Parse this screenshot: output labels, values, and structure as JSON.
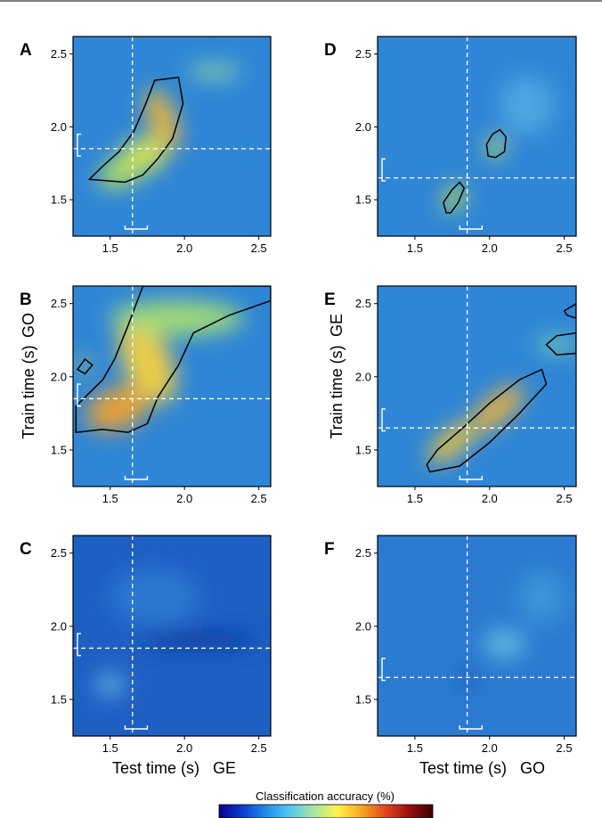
{
  "chart_data": [
    {
      "type": "heatmap",
      "panel": "A",
      "xlim": [
        1.25,
        2.58
      ],
      "ylim": [
        1.25,
        2.62
      ],
      "x_ticks": [
        "1.5",
        "2.0",
        "2.5"
      ],
      "y_ticks": [
        "1.5",
        "2.0",
        "2.5"
      ],
      "x_ticks_values": [
        1.5,
        2.0,
        2.5
      ],
      "y_ticks_values": [
        1.5,
        2.0,
        2.5
      ],
      "vline": 1.65,
      "hline": 1.85,
      "x_bracket": [
        1.6,
        1.75
      ],
      "y_bracket": [
        1.8,
        1.95
      ],
      "background": "#2f86d6",
      "blobs": [
        {
          "cx": 1.72,
          "cy": 1.8,
          "rx": 0.16,
          "ry": 0.12,
          "rot": -20,
          "color": "#f4e64a"
        },
        {
          "cx": 1.85,
          "cy": 2.05,
          "rx": 0.09,
          "ry": 0.22,
          "rot": -20,
          "color": "#f2b834"
        },
        {
          "cx": 1.62,
          "cy": 1.72,
          "rx": 0.22,
          "ry": 0.1,
          "rot": -30,
          "color": "#bfe35a"
        },
        {
          "cx": 2.2,
          "cy": 2.38,
          "rx": 0.18,
          "ry": 0.05,
          "rot": 0,
          "color": "#8fd6a6"
        }
      ],
      "contours": [
        [
          [
            1.36,
            1.64
          ],
          [
            1.45,
            1.73
          ],
          [
            1.56,
            1.83
          ],
          [
            1.66,
            1.97
          ],
          [
            1.74,
            2.16
          ],
          [
            1.8,
            2.32
          ],
          [
            1.96,
            2.34
          ],
          [
            1.99,
            2.16
          ],
          [
            1.92,
            1.92
          ],
          [
            1.82,
            1.78
          ],
          [
            1.72,
            1.67
          ],
          [
            1.6,
            1.62
          ],
          [
            1.36,
            1.64
          ]
        ]
      ]
    },
    {
      "type": "heatmap",
      "panel": "B",
      "xlim": [
        1.25,
        2.58
      ],
      "ylim": [
        1.25,
        2.62
      ],
      "x_ticks": [
        "1.5",
        "2.0",
        "2.5"
      ],
      "y_ticks": [
        "1.5",
        "2.0",
        "2.5"
      ],
      "x_ticks_values": [
        1.5,
        2.0,
        2.5
      ],
      "y_ticks_values": [
        1.5,
        2.0,
        2.5
      ],
      "vline": 1.65,
      "hline": 1.85,
      "x_bracket": [
        1.6,
        1.75
      ],
      "y_bracket": [
        1.8,
        1.95
      ],
      "background": "#2f86d6",
      "blobs": [
        {
          "cx": 1.55,
          "cy": 1.78,
          "rx": 0.22,
          "ry": 0.14,
          "rot": -20,
          "color": "#f0a22e"
        },
        {
          "cx": 1.75,
          "cy": 2.1,
          "rx": 0.16,
          "ry": 0.3,
          "rot": -25,
          "color": "#f4d040"
        },
        {
          "cx": 1.95,
          "cy": 2.4,
          "rx": 0.45,
          "ry": 0.12,
          "rot": 0,
          "color": "#a6dd74"
        },
        {
          "cx": 1.32,
          "cy": 2.08,
          "rx": 0.05,
          "ry": 0.04,
          "rot": 0,
          "color": "#e3ec54"
        }
      ],
      "contours": [
        [
          [
            1.27,
            1.62
          ],
          [
            1.45,
            1.64
          ],
          [
            1.62,
            1.62
          ],
          [
            1.75,
            1.68
          ],
          [
            1.82,
            1.86
          ],
          [
            1.96,
            2.08
          ],
          [
            2.06,
            2.3
          ],
          [
            2.3,
            2.42
          ],
          [
            2.58,
            2.52
          ],
          [
            2.58,
            2.62
          ],
          [
            1.72,
            2.62
          ],
          [
            1.62,
            2.35
          ],
          [
            1.53,
            2.12
          ],
          [
            1.45,
            1.98
          ],
          [
            1.27,
            1.8
          ]
        ],
        [
          [
            1.28,
            2.05
          ],
          [
            1.33,
            2.12
          ],
          [
            1.38,
            2.08
          ],
          [
            1.33,
            2.02
          ],
          [
            1.28,
            2.05
          ]
        ]
      ]
    },
    {
      "type": "heatmap",
      "panel": "C",
      "xlim": [
        1.25,
        2.58
      ],
      "ylim": [
        1.25,
        2.62
      ],
      "x_ticks": [
        "1.5",
        "2.0",
        "2.5"
      ],
      "y_ticks": [
        "1.5",
        "2.0",
        "2.5"
      ],
      "x_ticks_values": [
        1.5,
        2.0,
        2.5
      ],
      "y_ticks_values": [
        1.5,
        2.0,
        2.5
      ],
      "vline": 1.65,
      "hline": 1.85,
      "x_bracket": [
        1.6,
        1.75
      ],
      "y_bracket": [
        1.8,
        1.95
      ],
      "background": "#1e5fc4",
      "blobs": [
        {
          "cx": 1.5,
          "cy": 1.6,
          "rx": 0.1,
          "ry": 0.08,
          "rot": 0,
          "color": "#5fb0e3"
        },
        {
          "cx": 2.1,
          "cy": 1.9,
          "rx": 0.4,
          "ry": 0.06,
          "rot": 0,
          "color": "#123c9e"
        },
        {
          "cx": 1.8,
          "cy": 2.2,
          "rx": 0.3,
          "ry": 0.2,
          "rot": 0,
          "color": "#2b78d2"
        }
      ],
      "contours": []
    },
    {
      "type": "heatmap",
      "panel": "D",
      "xlim": [
        1.25,
        2.58
      ],
      "ylim": [
        1.25,
        2.62
      ],
      "x_ticks": [
        "1.5",
        "2.0",
        "2.5"
      ],
      "y_ticks": [
        "1.5",
        "2.0",
        "2.5"
      ],
      "x_ticks_values": [
        1.5,
        2.0,
        2.5
      ],
      "y_ticks_values": [
        1.5,
        2.0,
        2.5
      ],
      "vline": 1.85,
      "hline": 1.65,
      "x_bracket": [
        1.8,
        1.95
      ],
      "y_bracket": [
        1.63,
        1.78
      ],
      "background": "#2f86d6",
      "blobs": [
        {
          "cx": 1.76,
          "cy": 1.51,
          "rx": 0.06,
          "ry": 0.1,
          "rot": 30,
          "color": "#c8e24e"
        },
        {
          "cx": 2.04,
          "cy": 1.86,
          "rx": 0.06,
          "ry": 0.07,
          "rot": 0,
          "color": "#dbe84f"
        },
        {
          "cx": 2.25,
          "cy": 2.15,
          "rx": 0.18,
          "ry": 0.2,
          "rot": 0,
          "color": "#4fa8e0"
        }
      ],
      "contours": [
        [
          [
            1.71,
            1.41
          ],
          [
            1.69,
            1.48
          ],
          [
            1.75,
            1.57
          ],
          [
            1.8,
            1.62
          ],
          [
            1.83,
            1.58
          ],
          [
            1.79,
            1.48
          ],
          [
            1.74,
            1.41
          ],
          [
            1.71,
            1.41
          ]
        ],
        [
          [
            1.99,
            1.8
          ],
          [
            1.98,
            1.88
          ],
          [
            2.02,
            1.95
          ],
          [
            2.07,
            1.98
          ],
          [
            2.11,
            1.93
          ],
          [
            2.1,
            1.83
          ],
          [
            2.04,
            1.79
          ],
          [
            1.99,
            1.8
          ]
        ]
      ]
    },
    {
      "type": "heatmap",
      "panel": "E",
      "xlim": [
        1.25,
        2.58
      ],
      "ylim": [
        1.25,
        2.62
      ],
      "x_ticks": [
        "1.5",
        "2.0",
        "2.5"
      ],
      "y_ticks": [
        "1.5",
        "2.0",
        "2.5"
      ],
      "x_ticks_values": [
        1.5,
        2.0,
        2.5
      ],
      "y_ticks_values": [
        1.5,
        2.0,
        2.5
      ],
      "vline": 1.85,
      "hline": 1.65,
      "x_bracket": [
        1.8,
        1.95
      ],
      "y_bracket": [
        1.63,
        1.78
      ],
      "background": "#2f86d6",
      "blobs": [
        {
          "cx": 1.75,
          "cy": 1.55,
          "rx": 0.2,
          "ry": 0.08,
          "rot": -40,
          "color": "#f2c43a"
        },
        {
          "cx": 2.05,
          "cy": 1.78,
          "rx": 0.22,
          "ry": 0.09,
          "rot": -40,
          "color": "#f3b335"
        },
        {
          "cx": 2.45,
          "cy": 2.22,
          "rx": 0.14,
          "ry": 0.06,
          "rot": 0,
          "color": "#6fc8b4"
        }
      ],
      "contours": [
        [
          [
            1.6,
            1.35
          ],
          [
            1.8,
            1.39
          ],
          [
            2.0,
            1.55
          ],
          [
            2.2,
            1.75
          ],
          [
            2.38,
            1.95
          ],
          [
            2.35,
            2.05
          ],
          [
            2.2,
            1.98
          ],
          [
            2.0,
            1.82
          ],
          [
            1.82,
            1.65
          ],
          [
            1.65,
            1.5
          ],
          [
            1.58,
            1.4
          ],
          [
            1.6,
            1.35
          ]
        ],
        [
          [
            2.38,
            2.22
          ],
          [
            2.45,
            2.28
          ],
          [
            2.58,
            2.3
          ],
          [
            2.58,
            2.16
          ],
          [
            2.45,
            2.15
          ],
          [
            2.38,
            2.22
          ]
        ],
        [
          [
            2.5,
            2.45
          ],
          [
            2.58,
            2.5
          ],
          [
            2.58,
            2.4
          ],
          [
            2.52,
            2.42
          ],
          [
            2.5,
            2.45
          ]
        ]
      ]
    },
    {
      "type": "heatmap",
      "panel": "F",
      "xlim": [
        1.25,
        2.58
      ],
      "ylim": [
        1.25,
        2.62
      ],
      "x_ticks": [
        "1.5",
        "2.0",
        "2.5"
      ],
      "y_ticks": [
        "1.5",
        "2.0",
        "2.5"
      ],
      "x_ticks_values": [
        1.5,
        2.0,
        2.5
      ],
      "y_ticks_values": [
        1.5,
        2.0,
        2.5
      ],
      "vline": 1.85,
      "hline": 1.65,
      "x_bracket": [
        1.8,
        1.95
      ],
      "y_bracket": [
        1.63,
        1.78
      ],
      "background": "#2a7bd1",
      "blobs": [
        {
          "cx": 2.1,
          "cy": 1.88,
          "rx": 0.14,
          "ry": 0.1,
          "rot": 0,
          "color": "#63b8e0"
        },
        {
          "cx": 2.35,
          "cy": 2.2,
          "rx": 0.16,
          "ry": 0.18,
          "rot": 0,
          "color": "#3f95d9"
        },
        {
          "cx": 1.85,
          "cy": 1.65,
          "rx": 0.05,
          "ry": 0.06,
          "rot": 0,
          "color": "#1a4fb4"
        }
      ],
      "contours": []
    }
  ],
  "labels": {
    "panel_letters": [
      "A",
      "B",
      "C",
      "D",
      "E",
      "F"
    ],
    "y_axis_left": "Train time (s)",
    "y_axis_left_condition": "GO",
    "y_axis_right": "Train time (s)",
    "y_axis_right_condition": "GE",
    "x_axis_left": "Test time (s)",
    "x_axis_left_condition": "GE",
    "x_axis_right": "Test time (s)",
    "x_axis_right_condition": "GO",
    "colorbar_title": "Classification accuracy (%)"
  },
  "colors": {
    "colorbar": [
      "#08008f",
      "#0b3fd0",
      "#1f8fea",
      "#55c8f0",
      "#a8e6a0",
      "#fff24a",
      "#f6a623",
      "#e2461e",
      "#9a0f0f",
      "#3a0000"
    ],
    "axis": "#000000",
    "dashed_line": "#ffffff"
  }
}
